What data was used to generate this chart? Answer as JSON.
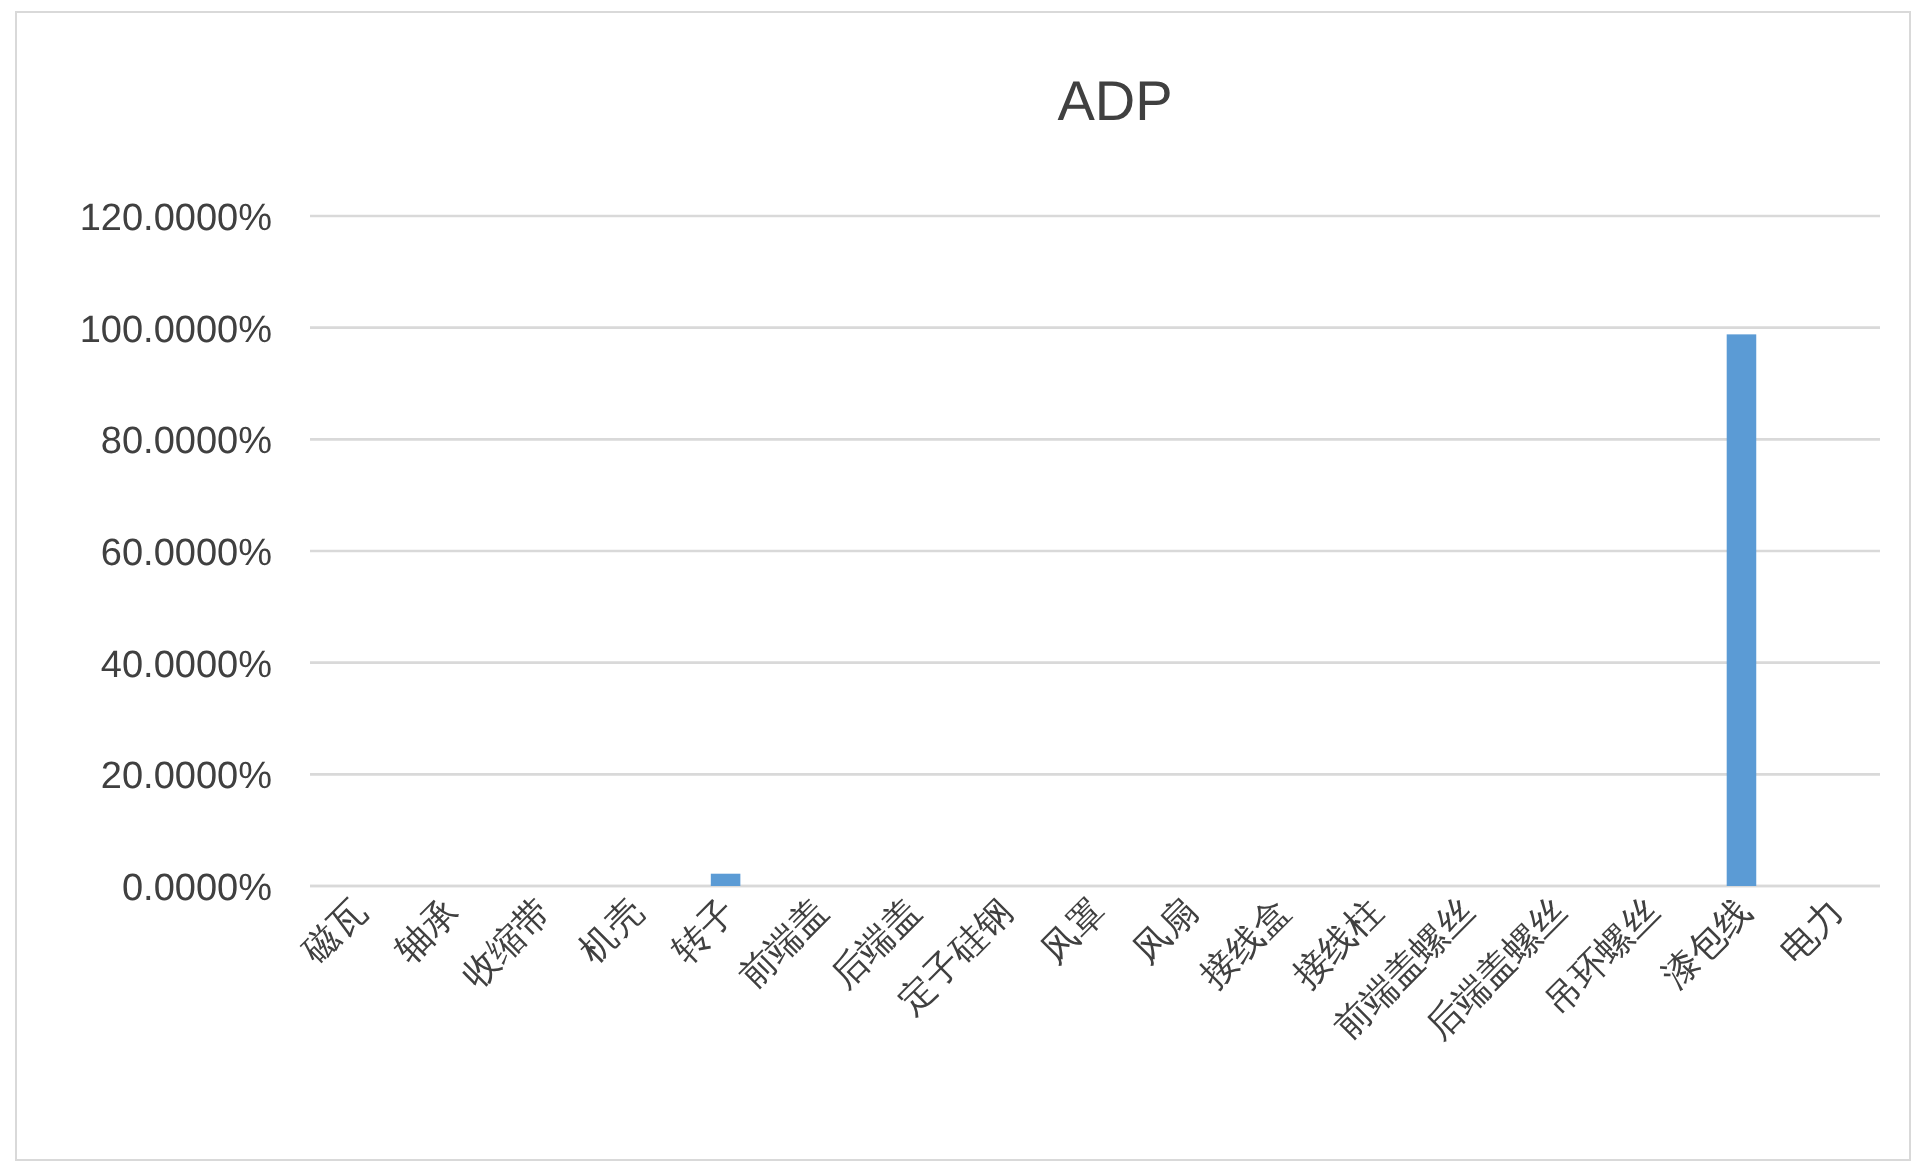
{
  "chart_data": {
    "type": "bar",
    "title": "ADP",
    "categories": [
      "磁瓦",
      "轴承",
      "收缩带",
      "机壳",
      "转子",
      "前端盖",
      "后端盖",
      "定子硅钢",
      "风罩",
      "风扇",
      "接线盒",
      "接线柱",
      "前端盖螺丝",
      "后端盖螺丝",
      "吊环螺丝",
      "漆包线",
      "电力"
    ],
    "values": [
      0,
      0,
      0,
      0,
      2.2,
      0,
      0,
      0,
      0,
      0,
      0,
      0,
      0,
      0,
      0,
      98.8,
      0
    ],
    "color": "#5b9bd5",
    "ylim": [
      0,
      120
    ],
    "yticks": [
      {
        "value": 0,
        "label": "0.0000%"
      },
      {
        "value": 20,
        "label": "20.0000%"
      },
      {
        "value": 40,
        "label": "40.0000%"
      },
      {
        "value": 60,
        "label": "60.0000%"
      },
      {
        "value": 80,
        "label": "80.0000%"
      },
      {
        "value": 100,
        "label": "100.0000%"
      },
      {
        "value": 120,
        "label": "120.0000%"
      }
    ],
    "grid": "y"
  }
}
